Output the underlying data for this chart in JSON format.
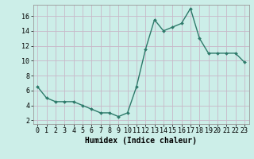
{
  "x": [
    0,
    1,
    2,
    3,
    4,
    5,
    6,
    7,
    8,
    9,
    10,
    11,
    12,
    13,
    14,
    15,
    16,
    17,
    18,
    19,
    20,
    21,
    22,
    23
  ],
  "y": [
    6.5,
    5.0,
    4.5,
    4.5,
    4.5,
    4.0,
    3.5,
    3.0,
    3.0,
    2.5,
    3.0,
    6.5,
    11.5,
    15.5,
    14.0,
    14.5,
    15.0,
    17.0,
    13.0,
    11.0,
    11.0,
    11.0,
    11.0,
    9.8
  ],
  "line_color": "#2d7a6a",
  "marker": "D",
  "marker_size": 2.0,
  "bg_color": "#cceee8",
  "grid_color": "#c8b8c8",
  "xlabel": "Humidex (Indice chaleur)",
  "xlim": [
    -0.5,
    23.5
  ],
  "ylim": [
    1.5,
    17.5
  ],
  "yticks": [
    2,
    4,
    6,
    8,
    10,
    12,
    14,
    16
  ],
  "xtick_labels": [
    "0",
    "1",
    "2",
    "3",
    "4",
    "5",
    "6",
    "7",
    "8",
    "9",
    "10",
    "11",
    "12",
    "13",
    "14",
    "15",
    "16",
    "17",
    "18",
    "19",
    "20",
    "21",
    "22",
    "23"
  ],
  "tick_fontsize": 6,
  "xlabel_fontsize": 7,
  "linewidth": 1.0
}
